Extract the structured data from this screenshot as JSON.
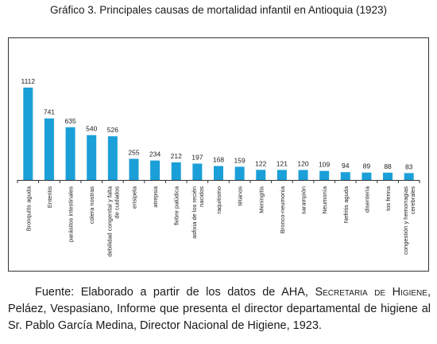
{
  "title": "Gráfico 3. Principales causas de mortalidad infantil en Antioquia (1923)",
  "source": {
    "prefix": "Fuente: Elaborado a partir de los datos de AHA, ",
    "org": "Secretaria de Higiene",
    "suffix": ", Peláez, Vespasiano, Informe que presenta el director departamental de higiene al Sr. Pablo García Medina, Director Nacional de Higiene, 1923."
  },
  "colors": {
    "bar": "#1b9fd8",
    "axis": "#333333",
    "frame": "#333333"
  },
  "chart_data": {
    "type": "bar",
    "title": "Gráfico 3. Principales causas de mortalidad infantil en Antioquia (1923)",
    "xlabel": "",
    "ylabel": "",
    "ylim": [
      0,
      1200
    ],
    "grid": false,
    "legend": "none",
    "categories": [
      "Bronquitis aguda",
      "Enteritis",
      "parásitos intestinales",
      "cólera nostras",
      "debilidad congenital y falta de cuidados",
      "erisipela",
      "atrepsia",
      "fiebre palúdica",
      "asfixia de los recién nacidos",
      "raquitismo",
      "tétanos",
      "Meningitis",
      "Bronco-neumonia",
      "sarampión",
      "Neumonía",
      "Nefritis aguda",
      "disentería",
      "tos ferina",
      "congestión y hemorragias cerebrales"
    ],
    "values": [
      1112,
      741,
      635,
      540,
      526,
      255,
      234,
      212,
      197,
      168,
      159,
      122,
      121,
      120,
      109,
      94,
      89,
      88,
      83
    ]
  }
}
